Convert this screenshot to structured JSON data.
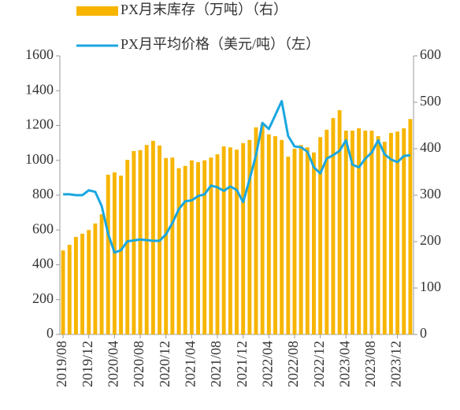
{
  "chart_data": {
    "type": "combo",
    "categories": [
      "2019/08",
      null,
      null,
      null,
      "2019/12",
      null,
      null,
      null,
      "2020/04",
      null,
      null,
      null,
      "2020/08",
      null,
      null,
      null,
      "2020/12",
      null,
      null,
      null,
      "2021/04",
      null,
      null,
      null,
      "2021/08",
      null,
      null,
      null,
      "2021/12",
      null,
      null,
      null,
      "2022/04",
      null,
      null,
      null,
      "2022/08",
      null,
      null,
      null,
      "2022/12",
      null,
      null,
      null,
      "2023/04",
      null,
      null,
      null,
      "2023/08",
      null,
      null,
      null,
      "2023/12",
      null,
      null
    ],
    "series": [
      {
        "name": "PX月末库存（万吨）（右）",
        "type": "bar",
        "axis": "y2",
        "color": "#f7b500",
        "values": [
          181,
          193,
          210,
          217,
          225,
          239,
          259,
          344,
          349,
          342,
          376,
          395,
          397,
          408,
          417,
          407,
          380,
          381,
          358,
          363,
          375,
          371,
          375,
          381,
          388,
          405,
          403,
          398,
          412,
          419,
          446,
          454,
          431,
          427,
          419,
          383,
          400,
          408,
          403,
          392,
          425,
          441,
          466,
          483,
          439,
          439,
          444,
          439,
          439,
          427,
          415,
          434,
          437,
          444,
          464
        ]
      },
      {
        "name": "PX月平均价格（美元/吨）（左）",
        "type": "line",
        "color": "#1aa7e0",
        "values": [
          805,
          805,
          800,
          800,
          828,
          819,
          738,
          579,
          470,
          484,
          535,
          540,
          545,
          542,
          538,
          538,
          575,
          640,
          720,
          765,
          770,
          795,
          805,
          855,
          845,
          825,
          850,
          830,
          760,
          890,
          1030,
          1215,
          1180,
          1260,
          1340,
          1140,
          1080,
          1075,
          1050,
          960,
          925,
          1010,
          1030,
          1055,
          1115,
          975,
          960,
          1010,
          1045,
          1115,
          1035,
          1005,
          990,
          1025,
          1030
        ]
      }
    ],
    "ylim": [
      0,
      1600
    ],
    "yticks": [
      0,
      200,
      400,
      600,
      800,
      1000,
      1200,
      1400,
      1600
    ],
    "y2lim": [
      0,
      600
    ],
    "y2ticks": [
      0,
      100,
      200,
      300,
      400,
      500,
      600
    ]
  }
}
